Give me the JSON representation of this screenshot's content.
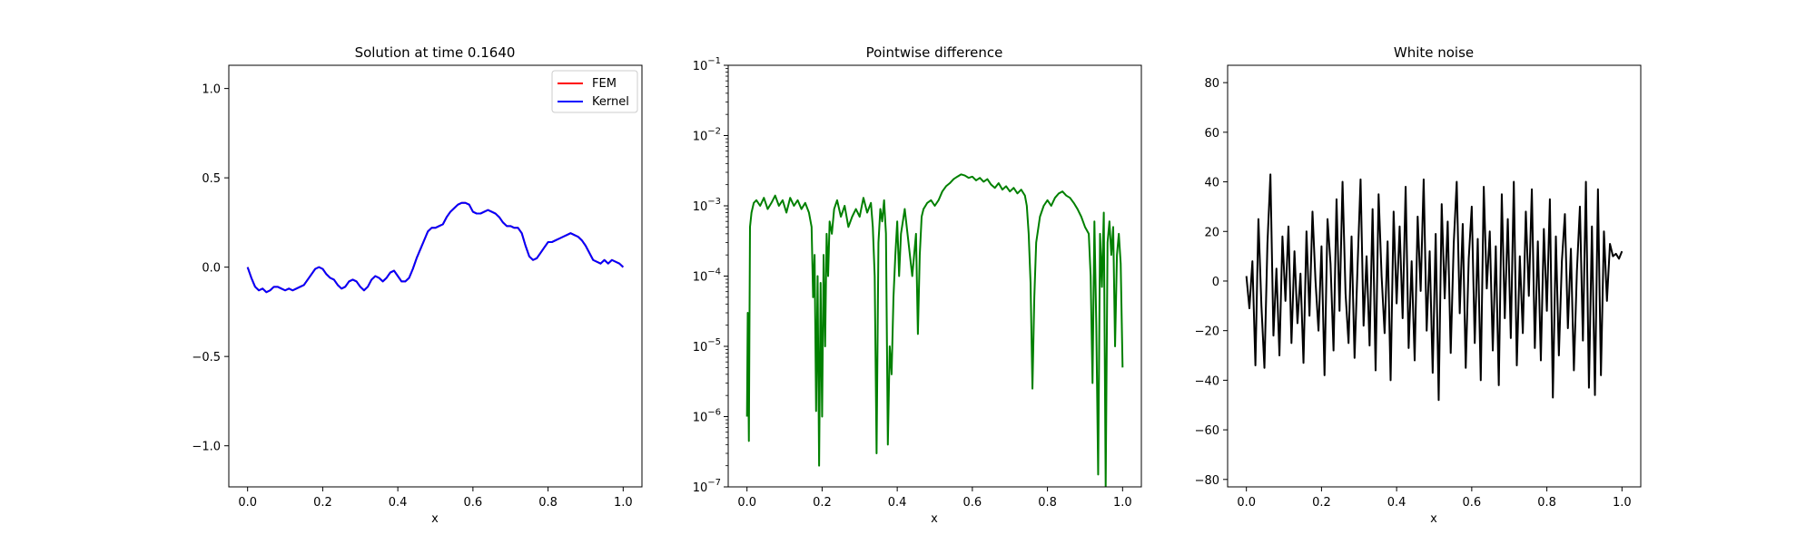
{
  "colors": {
    "fem": "#ff0000",
    "kernel": "#0000ff",
    "diff": "#008000",
    "noise": "#000000"
  },
  "chart_data": [
    {
      "type": "line",
      "title": "Solution at time 0.1640",
      "xlabel": "x",
      "ylabel": "",
      "xlim": [
        -0.05,
        1.05
      ],
      "ylim": [
        -1.23,
        1.13
      ],
      "xticks": [
        0.0,
        0.2,
        0.4,
        0.6,
        0.8,
        1.0
      ],
      "xtick_labels": [
        "0.0",
        "0.2",
        "0.4",
        "0.6",
        "0.8",
        "1.0"
      ],
      "yticks": [
        -1.0,
        -0.5,
        0.0,
        0.5,
        1.0
      ],
      "ytick_labels": [
        "−1.0",
        "−0.5",
        "0.0",
        "0.5",
        "1.0"
      ],
      "grid": false,
      "legend": "top-right",
      "series": [
        {
          "name": "FEM",
          "color": "#ff0000",
          "x": [
            0.0,
            0.01,
            0.02,
            0.03,
            0.04,
            0.05,
            0.06,
            0.07,
            0.08,
            0.09,
            0.1,
            0.11,
            0.12,
            0.13,
            0.14,
            0.15,
            0.16,
            0.17,
            0.18,
            0.19,
            0.2,
            0.21,
            0.22,
            0.23,
            0.24,
            0.25,
            0.26,
            0.27,
            0.28,
            0.29,
            0.3,
            0.31,
            0.32,
            0.33,
            0.34,
            0.35,
            0.36,
            0.37,
            0.38,
            0.39,
            0.4,
            0.41,
            0.42,
            0.43,
            0.44,
            0.45,
            0.46,
            0.47,
            0.48,
            0.49,
            0.5,
            0.51,
            0.52,
            0.53,
            0.54,
            0.55,
            0.56,
            0.57,
            0.58,
            0.59,
            0.6,
            0.61,
            0.62,
            0.63,
            0.64,
            0.65,
            0.66,
            0.67,
            0.68,
            0.69,
            0.7,
            0.71,
            0.72,
            0.73,
            0.74,
            0.75,
            0.76,
            0.77,
            0.78,
            0.79,
            0.8,
            0.81,
            0.82,
            0.83,
            0.84,
            0.85,
            0.86,
            0.87,
            0.88,
            0.89,
            0.9,
            0.91,
            0.92,
            0.93,
            0.94,
            0.95,
            0.96,
            0.97,
            0.98,
            0.99,
            1.0
          ],
          "y": [
            0.0,
            -0.06,
            -0.11,
            -0.13,
            -0.12,
            -0.14,
            -0.13,
            -0.11,
            -0.11,
            -0.12,
            -0.13,
            -0.12,
            -0.13,
            -0.12,
            -0.11,
            -0.1,
            -0.07,
            -0.04,
            -0.01,
            0.0,
            -0.01,
            -0.04,
            -0.06,
            -0.07,
            -0.1,
            -0.12,
            -0.11,
            -0.08,
            -0.07,
            -0.08,
            -0.11,
            -0.13,
            -0.11,
            -0.07,
            -0.05,
            -0.06,
            -0.08,
            -0.06,
            -0.03,
            -0.02,
            -0.05,
            -0.08,
            -0.08,
            -0.06,
            -0.01,
            0.05,
            0.1,
            0.15,
            0.2,
            0.22,
            0.22,
            0.23,
            0.24,
            0.28,
            0.31,
            0.33,
            0.35,
            0.36,
            0.36,
            0.35,
            0.31,
            0.3,
            0.3,
            0.31,
            0.32,
            0.31,
            0.3,
            0.28,
            0.25,
            0.23,
            0.23,
            0.22,
            0.22,
            0.19,
            0.12,
            0.06,
            0.04,
            0.05,
            0.08,
            0.11,
            0.14,
            0.14,
            0.15,
            0.16,
            0.17,
            0.18,
            0.19,
            0.18,
            0.17,
            0.15,
            0.12,
            0.08,
            0.04,
            0.03,
            0.02,
            0.04,
            0.02,
            0.04,
            0.03,
            0.02,
            0.0
          ]
        },
        {
          "name": "Kernel",
          "color": "#0000ff",
          "x": [
            0.0,
            0.01,
            0.02,
            0.03,
            0.04,
            0.05,
            0.06,
            0.07,
            0.08,
            0.09,
            0.1,
            0.11,
            0.12,
            0.13,
            0.14,
            0.15,
            0.16,
            0.17,
            0.18,
            0.19,
            0.2,
            0.21,
            0.22,
            0.23,
            0.24,
            0.25,
            0.26,
            0.27,
            0.28,
            0.29,
            0.3,
            0.31,
            0.32,
            0.33,
            0.34,
            0.35,
            0.36,
            0.37,
            0.38,
            0.39,
            0.4,
            0.41,
            0.42,
            0.43,
            0.44,
            0.45,
            0.46,
            0.47,
            0.48,
            0.49,
            0.5,
            0.51,
            0.52,
            0.53,
            0.54,
            0.55,
            0.56,
            0.57,
            0.58,
            0.59,
            0.6,
            0.61,
            0.62,
            0.63,
            0.64,
            0.65,
            0.66,
            0.67,
            0.68,
            0.69,
            0.7,
            0.71,
            0.72,
            0.73,
            0.74,
            0.75,
            0.76,
            0.77,
            0.78,
            0.79,
            0.8,
            0.81,
            0.82,
            0.83,
            0.84,
            0.85,
            0.86,
            0.87,
            0.88,
            0.89,
            0.9,
            0.91,
            0.92,
            0.93,
            0.94,
            0.95,
            0.96,
            0.97,
            0.98,
            0.99,
            1.0
          ],
          "y": [
            0.0,
            -0.06,
            -0.11,
            -0.13,
            -0.12,
            -0.14,
            -0.13,
            -0.11,
            -0.11,
            -0.12,
            -0.13,
            -0.12,
            -0.13,
            -0.12,
            -0.11,
            -0.1,
            -0.07,
            -0.04,
            -0.01,
            0.0,
            -0.01,
            -0.04,
            -0.06,
            -0.07,
            -0.1,
            -0.12,
            -0.11,
            -0.08,
            -0.07,
            -0.08,
            -0.11,
            -0.13,
            -0.11,
            -0.07,
            -0.05,
            -0.06,
            -0.08,
            -0.06,
            -0.03,
            -0.02,
            -0.05,
            -0.08,
            -0.08,
            -0.06,
            -0.01,
            0.05,
            0.1,
            0.15,
            0.2,
            0.22,
            0.22,
            0.23,
            0.24,
            0.28,
            0.31,
            0.33,
            0.35,
            0.36,
            0.36,
            0.35,
            0.31,
            0.3,
            0.3,
            0.31,
            0.32,
            0.31,
            0.3,
            0.28,
            0.25,
            0.23,
            0.23,
            0.22,
            0.22,
            0.19,
            0.12,
            0.06,
            0.04,
            0.05,
            0.08,
            0.11,
            0.14,
            0.14,
            0.15,
            0.16,
            0.17,
            0.18,
            0.19,
            0.18,
            0.17,
            0.15,
            0.12,
            0.08,
            0.04,
            0.03,
            0.02,
            0.04,
            0.02,
            0.04,
            0.03,
            0.02,
            0.0
          ]
        }
      ]
    },
    {
      "type": "line",
      "title": "Pointwise difference",
      "xlabel": "x",
      "ylabel": "",
      "yscale": "log",
      "xlim": [
        -0.05,
        1.05
      ],
      "ylim": [
        1e-07,
        0.1
      ],
      "xticks": [
        0.0,
        0.2,
        0.4,
        0.6,
        0.8,
        1.0
      ],
      "xtick_labels": [
        "0.0",
        "0.2",
        "0.4",
        "0.6",
        "0.8",
        "1.0"
      ],
      "yticks": [
        1e-07,
        1e-06,
        1e-05,
        0.0001,
        0.001,
        0.01,
        0.1
      ],
      "ytick_bases": [
        "10",
        "10",
        "10",
        "10",
        "10",
        "10",
        "10"
      ],
      "ytick_exps": [
        "−7",
        "−6",
        "−5",
        "−4",
        "−3",
        "−2",
        "−1"
      ],
      "grid": false,
      "series": [
        {
          "color": "#008000",
          "x": [
            0.0,
            0.002,
            0.005,
            0.008,
            0.012,
            0.018,
            0.025,
            0.035,
            0.045,
            0.055,
            0.065,
            0.075,
            0.085,
            0.095,
            0.105,
            0.115,
            0.125,
            0.135,
            0.145,
            0.155,
            0.165,
            0.172,
            0.176,
            0.18,
            0.184,
            0.188,
            0.192,
            0.196,
            0.2,
            0.204,
            0.208,
            0.212,
            0.216,
            0.22,
            0.226,
            0.232,
            0.24,
            0.25,
            0.26,
            0.27,
            0.28,
            0.29,
            0.3,
            0.31,
            0.32,
            0.33,
            0.335,
            0.34,
            0.345,
            0.35,
            0.355,
            0.36,
            0.365,
            0.37,
            0.375,
            0.38,
            0.385,
            0.39,
            0.395,
            0.4,
            0.405,
            0.41,
            0.42,
            0.43,
            0.44,
            0.45,
            0.455,
            0.46,
            0.465,
            0.47,
            0.48,
            0.49,
            0.5,
            0.51,
            0.52,
            0.53,
            0.54,
            0.55,
            0.56,
            0.57,
            0.58,
            0.59,
            0.6,
            0.61,
            0.62,
            0.63,
            0.64,
            0.65,
            0.66,
            0.67,
            0.68,
            0.69,
            0.7,
            0.71,
            0.72,
            0.73,
            0.74,
            0.745,
            0.75,
            0.755,
            0.76,
            0.765,
            0.77,
            0.78,
            0.79,
            0.8,
            0.81,
            0.82,
            0.83,
            0.84,
            0.85,
            0.86,
            0.87,
            0.88,
            0.89,
            0.9,
            0.91,
            0.915,
            0.92,
            0.925,
            0.93,
            0.935,
            0.94,
            0.945,
            0.95,
            0.955,
            0.96,
            0.965,
            0.97,
            0.975,
            0.98,
            0.985,
            0.99,
            0.995,
            1.0
          ],
          "y": [
            1e-06,
            3e-05,
            4.5e-07,
            0.0005,
            0.0008,
            0.0011,
            0.0012,
            0.001,
            0.0013,
            0.0009,
            0.0011,
            0.0014,
            0.001,
            0.0012,
            0.0008,
            0.0013,
            0.001,
            0.0012,
            0.0009,
            0.0011,
            0.0008,
            0.0005,
            5e-05,
            0.0002,
            1.2e-06,
            0.0001,
            2e-07,
            8e-05,
            1e-06,
            0.0002,
            1e-05,
            0.0004,
            0.0001,
            0.0006,
            0.0004,
            0.0009,
            0.0012,
            0.0007,
            0.001,
            0.0005,
            0.0007,
            0.0009,
            0.0007,
            0.0013,
            0.0008,
            0.0011,
            0.0005,
            0.0001,
            3e-07,
            0.0003,
            0.0009,
            0.0006,
            0.0012,
            0.0004,
            4e-07,
            1e-05,
            4e-06,
            5e-05,
            0.0002,
            0.0006,
            0.0001,
            0.0004,
            0.0009,
            0.0003,
            0.0001,
            0.0004,
            1.5e-05,
            0.0002,
            0.0007,
            0.0009,
            0.0011,
            0.0012,
            0.001,
            0.0012,
            0.0016,
            0.0019,
            0.0021,
            0.0024,
            0.0026,
            0.0028,
            0.0027,
            0.0025,
            0.0026,
            0.0023,
            0.0025,
            0.0022,
            0.0024,
            0.002,
            0.0018,
            0.0021,
            0.0017,
            0.0019,
            0.0016,
            0.0018,
            0.0015,
            0.0017,
            0.0014,
            0.001,
            0.0004,
            8e-05,
            2.5e-06,
            5e-05,
            0.0003,
            0.0007,
            0.001,
            0.0012,
            0.001,
            0.0013,
            0.0015,
            0.0016,
            0.0014,
            0.0013,
            0.0011,
            0.0009,
            0.0007,
            0.0005,
            0.0004,
            0.0001,
            3e-06,
            0.0006,
            2e-05,
            1.5e-07,
            0.0004,
            7e-05,
            0.0008,
            1e-07,
            0.0003,
            0.0006,
            0.0002,
            0.0005,
            1e-05,
            0.0002,
            0.0004,
            0.00015,
            5e-06
          ]
        }
      ]
    },
    {
      "type": "line",
      "title": "White noise",
      "xlabel": "x",
      "ylabel": "",
      "xlim": [
        -0.05,
        1.05
      ],
      "ylim": [
        -83,
        87
      ],
      "xticks": [
        0.0,
        0.2,
        0.4,
        0.6,
        0.8,
        1.0
      ],
      "xtick_labels": [
        "0.0",
        "0.2",
        "0.4",
        "0.6",
        "0.8",
        "1.0"
      ],
      "yticks": [
        -80,
        -60,
        -40,
        -20,
        0,
        20,
        40,
        60,
        80
      ],
      "ytick_labels": [
        "−80",
        "−60",
        "−40",
        "−20",
        "0",
        "20",
        "40",
        "60",
        "80"
      ],
      "grid": false,
      "series": [
        {
          "color": "#000000",
          "x": [
            0.0,
            0.008,
            0.016,
            0.024,
            0.032,
            0.04,
            0.048,
            0.056,
            0.064,
            0.072,
            0.08,
            0.088,
            0.096,
            0.104,
            0.112,
            0.12,
            0.128,
            0.136,
            0.144,
            0.152,
            0.16,
            0.168,
            0.176,
            0.184,
            0.192,
            0.2,
            0.208,
            0.216,
            0.224,
            0.232,
            0.24,
            0.248,
            0.256,
            0.264,
            0.272,
            0.28,
            0.288,
            0.296,
            0.304,
            0.312,
            0.32,
            0.328,
            0.336,
            0.344,
            0.352,
            0.36,
            0.368,
            0.376,
            0.384,
            0.392,
            0.4,
            0.408,
            0.416,
            0.424,
            0.432,
            0.44,
            0.448,
            0.456,
            0.464,
            0.472,
            0.48,
            0.488,
            0.496,
            0.504,
            0.512,
            0.52,
            0.528,
            0.536,
            0.544,
            0.552,
            0.56,
            0.568,
            0.576,
            0.584,
            0.592,
            0.6,
            0.608,
            0.616,
            0.624,
            0.632,
            0.64,
            0.648,
            0.656,
            0.664,
            0.672,
            0.68,
            0.688,
            0.696,
            0.704,
            0.712,
            0.72,
            0.728,
            0.736,
            0.744,
            0.752,
            0.76,
            0.768,
            0.776,
            0.784,
            0.792,
            0.8,
            0.808,
            0.816,
            0.824,
            0.832,
            0.84,
            0.848,
            0.856,
            0.864,
            0.872,
            0.88,
            0.888,
            0.896,
            0.904,
            0.912,
            0.92,
            0.928,
            0.936,
            0.944,
            0.952,
            0.96,
            0.968,
            0.976,
            0.984,
            0.992,
            1.0
          ],
          "y": [
            2,
            -11,
            8,
            -34,
            25,
            -10,
            -35,
            15,
            43,
            -22,
            5,
            -30,
            18,
            -8,
            22,
            -25,
            12,
            -17,
            3,
            -33,
            20,
            -14,
            28,
            0,
            -20,
            14,
            -38,
            25,
            7,
            -28,
            33,
            -12,
            40,
            -5,
            -25,
            18,
            -31,
            6,
            41,
            -18,
            10,
            -26,
            29,
            -36,
            35,
            2,
            -21,
            16,
            -40,
            28,
            -9,
            22,
            -15,
            38,
            -27,
            8,
            -32,
            26,
            -4,
            41,
            -20,
            12,
            -37,
            19,
            -48,
            31,
            -7,
            24,
            -29,
            15,
            40,
            -13,
            23,
            -35,
            9,
            30,
            -25,
            17,
            -40,
            38,
            -3,
            20,
            -28,
            14,
            -42,
            35,
            -15,
            25,
            -23,
            40,
            -34,
            10,
            -21,
            28,
            -6,
            37,
            -27,
            16,
            -32,
            21,
            -12,
            33,
            -47,
            18,
            -30,
            8,
            27,
            -19,
            13,
            -36,
            4,
            30,
            -24,
            40,
            -43,
            22,
            -46,
            37,
            -38,
            20,
            -8,
            15,
            10,
            11,
            9,
            12
          ]
        }
      ]
    }
  ]
}
